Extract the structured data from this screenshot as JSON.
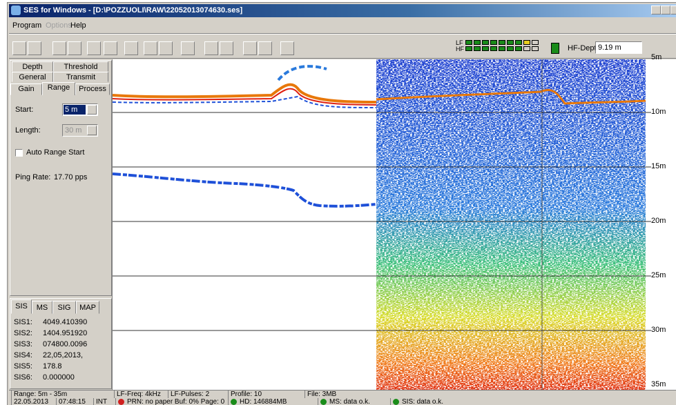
{
  "window": {
    "title": "SES for Windows - [D:\\POZZUOLI\\RAW\\22052013074630.ses]"
  },
  "menu": [
    "Program",
    "Options",
    "Help"
  ],
  "toolbar": {
    "lf_label": "LF",
    "hf_label": "HF",
    "hf_depth_label": "HF-Depth:",
    "hf_depth_value": "9.19 m"
  },
  "settings_panel": {
    "tabs_row1": [
      "Depth",
      "Threshold"
    ],
    "tabs_row2": [
      "General",
      "Transmit"
    ],
    "tabs_row3": [
      "Gain",
      "Range",
      "Process"
    ],
    "start_label": "Start:",
    "start_value": "5 m",
    "length_label": "Length:",
    "length_value": "30 m",
    "auto_range_label": "Auto Range Start",
    "ping_rate_label": "Ping Rate:",
    "ping_rate_value": "17.70 pps"
  },
  "info_panel": {
    "tabs": [
      "SIS",
      "MS",
      "SIG",
      "MAP"
    ],
    "rows": [
      [
        "SIS1:",
        "4049.410390"
      ],
      [
        "SIS2:",
        "1404.951920"
      ],
      [
        "SIS3:",
        "074800.0096"
      ],
      [
        "SIS4:",
        "22,05,2013,"
      ],
      [
        "SIS5:",
        "178.8"
      ],
      [
        "SIS6:",
        "0.000000"
      ]
    ]
  },
  "depth_scale": [
    "5m",
    "10m",
    "15m",
    "20m",
    "25m",
    "30m",
    "35m"
  ],
  "status_bar": {
    "row1": [
      "Range: 5m - 35m",
      "LF-Freq: 4kHz",
      "LF-Pulses: 2",
      "Profile: 10",
      "File: 3MB"
    ],
    "row2": [
      "22.05.2013",
      "07:48:15",
      "INT",
      "PRN: no paper Buf: 0% Page: 0",
      "HD: 146884MB",
      "MS: data o.k.",
      "SIS: data o.k."
    ]
  }
}
